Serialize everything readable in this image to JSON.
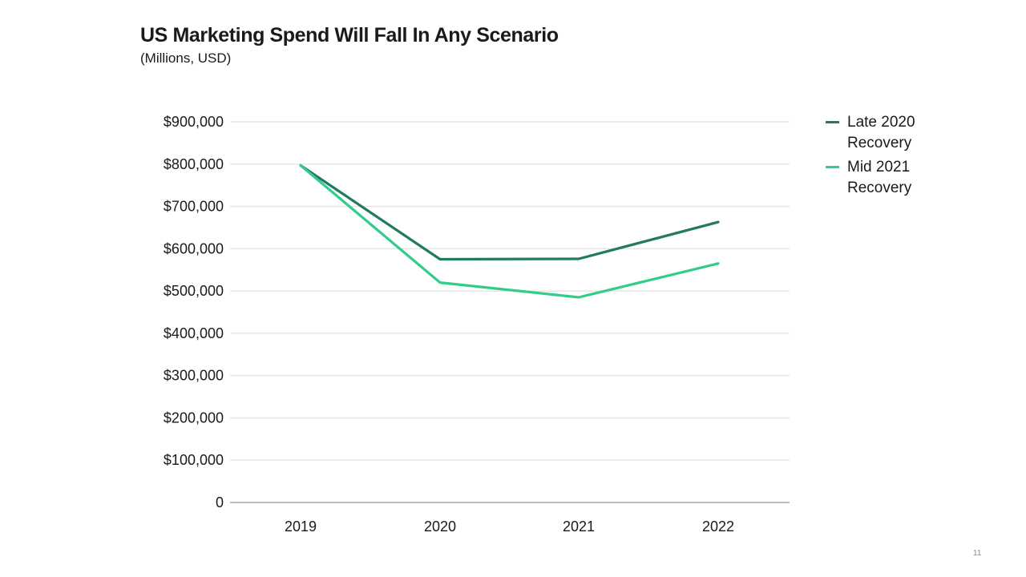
{
  "slide": {
    "title": "US Marketing Spend Will Fall In Any Scenario",
    "subtitle": "(Millions, USD)",
    "number": "11"
  },
  "chart_data": {
    "type": "line",
    "title": "US Marketing Spend Will Fall In Any Scenario",
    "subtitle": "(Millions, USD)",
    "xlabel": "",
    "ylabel": "",
    "x": [
      "2019",
      "2020",
      "2021",
      "2022"
    ],
    "ylim": [
      0,
      900000
    ],
    "yticks": [
      0,
      100000,
      200000,
      300000,
      400000,
      500000,
      600000,
      700000,
      800000,
      900000
    ],
    "ytick_labels": [
      "0",
      "$100,000",
      "$200,000",
      "$300,000",
      "$400,000",
      "$500,000",
      "$600,000",
      "$700,000",
      "$800,000",
      "$900,000"
    ],
    "grid": true,
    "legend_position": "right",
    "series": [
      {
        "name": "Late 2020 Recovery",
        "color": "#237a63",
        "values": [
          797000,
          575000,
          576000,
          663000
        ]
      },
      {
        "name": "Mid 2021 Recovery",
        "color": "#33cc8a",
        "values": [
          797000,
          520000,
          485000,
          565000
        ]
      }
    ],
    "gridline_color": "#e6e6e6",
    "axis_color": "#bdbdbd"
  }
}
